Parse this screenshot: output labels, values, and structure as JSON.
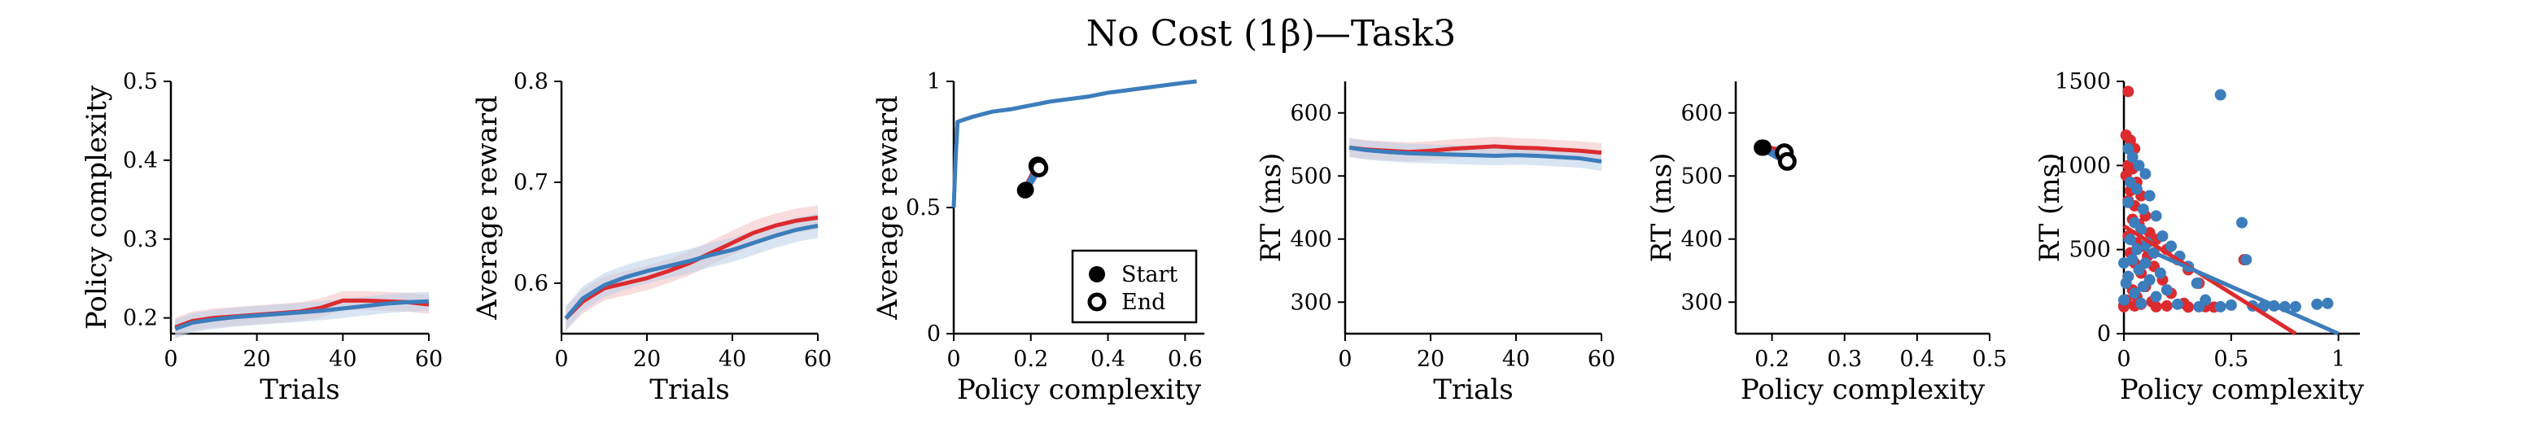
{
  "figure": {
    "title": "No Cost (1β)—Task3"
  },
  "colors": {
    "red": "#dc2b2f",
    "blue": "#3c7dbc",
    "red_band": "#f3bfc3",
    "blue_band": "#b9cfe8",
    "axis": "#000000"
  },
  "chart_data": [
    {
      "type": "line",
      "xlabel": "Trials",
      "ylabel": "Policy complexity",
      "xlim": [
        0,
        60
      ],
      "ylim": [
        0.18,
        0.5
      ],
      "xticks": [
        0,
        20,
        40,
        60
      ],
      "yticks": [
        0.2,
        0.3,
        0.4,
        0.5
      ],
      "xtick_labels": [
        "0",
        "20",
        "40",
        "60"
      ],
      "ytick_labels": [
        "0.2",
        "0.3",
        "0.4",
        "0.5"
      ],
      "series": [
        {
          "color": "red",
          "band": 0.012,
          "x": [
            1,
            5,
            10,
            15,
            20,
            25,
            30,
            35,
            40,
            45,
            50,
            55,
            60
          ],
          "y": [
            0.188,
            0.196,
            0.2,
            0.202,
            0.204,
            0.206,
            0.208,
            0.213,
            0.222,
            0.222,
            0.221,
            0.22,
            0.217
          ]
        },
        {
          "color": "blue",
          "band": 0.012,
          "x": [
            1,
            5,
            10,
            15,
            20,
            25,
            30,
            35,
            40,
            45,
            50,
            55,
            60
          ],
          "y": [
            0.186,
            0.194,
            0.198,
            0.201,
            0.203,
            0.205,
            0.207,
            0.209,
            0.212,
            0.215,
            0.218,
            0.22,
            0.221
          ]
        }
      ]
    },
    {
      "type": "line",
      "xlabel": "Trials",
      "ylabel": "Average reward",
      "xlim": [
        0,
        60
      ],
      "ylim": [
        0.55,
        0.8
      ],
      "xticks": [
        0,
        20,
        40,
        60
      ],
      "yticks": [
        0.6,
        0.7,
        0.8
      ],
      "xtick_labels": [
        "0",
        "20",
        "40",
        "60"
      ],
      "ytick_labels": [
        "0.6",
        "0.7",
        "0.8"
      ],
      "series": [
        {
          "color": "red",
          "band": 0.012,
          "x": [
            1,
            5,
            10,
            15,
            20,
            25,
            30,
            35,
            40,
            45,
            50,
            55,
            60
          ],
          "y": [
            0.565,
            0.582,
            0.595,
            0.6,
            0.605,
            0.612,
            0.62,
            0.63,
            0.64,
            0.65,
            0.657,
            0.662,
            0.665
          ]
        },
        {
          "color": "blue",
          "band": 0.012,
          "x": [
            1,
            5,
            10,
            15,
            20,
            25,
            30,
            35,
            40,
            45,
            50,
            55,
            60
          ],
          "y": [
            0.565,
            0.585,
            0.598,
            0.606,
            0.612,
            0.617,
            0.622,
            0.628,
            0.633,
            0.64,
            0.647,
            0.653,
            0.657
          ]
        }
      ]
    },
    {
      "type": "line",
      "xlabel": "Policy complexity",
      "ylabel": "Average reward",
      "xlim": [
        0,
        0.65
      ],
      "ylim": [
        0,
        1
      ],
      "xticks": [
        0,
        0.2,
        0.4,
        0.6
      ],
      "yticks": [
        0,
        0.5,
        1
      ],
      "xtick_labels": [
        "0",
        "0.2",
        "0.4",
        "0.6"
      ],
      "ytick_labels": [
        "0",
        "0.5",
        "1"
      ],
      "series": [
        {
          "color": "blue",
          "x": [
            0,
            0.005,
            0.01,
            0.05,
            0.1,
            0.15,
            0.2,
            0.25,
            0.3,
            0.35,
            0.4,
            0.45,
            0.5,
            0.55,
            0.6,
            0.63
          ],
          "y": [
            0.5,
            0.7,
            0.84,
            0.86,
            0.88,
            0.89,
            0.905,
            0.92,
            0.93,
            0.94,
            0.955,
            0.965,
            0.975,
            0.985,
            0.995,
            1.0
          ]
        }
      ],
      "markers": [
        {
          "kind": "start",
          "color": "red",
          "x": 0.187,
          "y": 0.57
        },
        {
          "kind": "start",
          "color": "blue",
          "x": 0.185,
          "y": 0.568
        },
        {
          "kind": "end",
          "color": "red",
          "x": 0.218,
          "y": 0.665
        },
        {
          "kind": "end",
          "color": "blue",
          "x": 0.221,
          "y": 0.657
        }
      ],
      "legend": {
        "position": "bottom-right",
        "start_label": "Start",
        "end_label": "End"
      }
    },
    {
      "type": "line",
      "xlabel": "Trials",
      "ylabel": "RT (ms)",
      "xlim": [
        0,
        60
      ],
      "ylim": [
        250,
        650
      ],
      "xticks": [
        0,
        20,
        40,
        60
      ],
      "yticks": [
        300,
        400,
        500,
        600
      ],
      "xtick_labels": [
        "0",
        "20",
        "40",
        "60"
      ],
      "ytick_labels": [
        "300",
        "400",
        "500",
        "600"
      ],
      "series": [
        {
          "color": "red",
          "band": 15,
          "x": [
            1,
            5,
            10,
            15,
            20,
            25,
            30,
            35,
            40,
            45,
            50,
            55,
            60
          ],
          "y": [
            545,
            542,
            540,
            538,
            540,
            543,
            545,
            547,
            545,
            544,
            542,
            540,
            537
          ]
        },
        {
          "color": "blue",
          "band": 15,
          "x": [
            1,
            5,
            10,
            15,
            20,
            25,
            30,
            35,
            40,
            45,
            50,
            55,
            60
          ],
          "y": [
            545,
            541,
            538,
            536,
            535,
            534,
            533,
            532,
            533,
            532,
            530,
            528,
            523
          ]
        }
      ]
    },
    {
      "type": "scatter",
      "xlabel": "Policy complexity",
      "ylabel": "RT (ms)",
      "xlim": [
        0.15,
        0.5
      ],
      "ylim": [
        250,
        650
      ],
      "xticks": [
        0.2,
        0.3,
        0.4,
        0.5
      ],
      "yticks": [
        300,
        400,
        500,
        600
      ],
      "xtick_labels": [
        "0.2",
        "0.3",
        "0.4",
        "0.5"
      ],
      "ytick_labels": [
        "300",
        "400",
        "500",
        "600"
      ],
      "markers": [
        {
          "kind": "start",
          "color": "red",
          "x": 0.188,
          "y": 545
        },
        {
          "kind": "start",
          "color": "blue",
          "x": 0.186,
          "y": 545
        },
        {
          "kind": "end",
          "color": "red",
          "x": 0.217,
          "y": 537
        },
        {
          "kind": "end",
          "color": "blue",
          "x": 0.221,
          "y": 523
        }
      ]
    },
    {
      "type": "scatter",
      "xlabel": "Policy complexity",
      "ylabel": "RT (ms)",
      "xlim": [
        0,
        1.1
      ],
      "ylim": [
        0,
        1500
      ],
      "xticks": [
        0,
        0.5,
        1
      ],
      "yticks": [
        0,
        500,
        1000,
        1500
      ],
      "xtick_labels": [
        "0",
        "0.5",
        "1"
      ],
      "ytick_labels": [
        "0",
        "500",
        "1000",
        "1500"
      ],
      "series": [
        {
          "color": "red",
          "points": [
            [
              0.02,
              1440
            ],
            [
              0.01,
              1180
            ],
            [
              0.03,
              1150
            ],
            [
              0.05,
              1100
            ],
            [
              0.02,
              1000
            ],
            [
              0.04,
              980
            ],
            [
              0.01,
              940
            ],
            [
              0.06,
              900
            ],
            [
              0.03,
              850
            ],
            [
              0.08,
              820
            ],
            [
              0.02,
              790
            ],
            [
              0.05,
              760
            ],
            [
              0.1,
              700
            ],
            [
              0.04,
              680
            ],
            [
              0.07,
              650
            ],
            [
              0.12,
              600
            ],
            [
              0.02,
              580
            ],
            [
              0.15,
              560
            ],
            [
              0.06,
              540
            ],
            [
              0.09,
              520
            ],
            [
              0.2,
              500
            ],
            [
              0.03,
              480
            ],
            [
              0.11,
              460
            ],
            [
              0.25,
              440
            ],
            [
              0.05,
              420
            ],
            [
              0.14,
              400
            ],
            [
              0.3,
              380
            ],
            [
              0.08,
              360
            ],
            [
              0.02,
              340
            ],
            [
              0.18,
              320
            ],
            [
              0.35,
              300
            ],
            [
              0.1,
              280
            ],
            [
              0.04,
              260
            ],
            [
              0.22,
              240
            ],
            [
              0.06,
              220
            ],
            [
              0.01,
              200
            ],
            [
              0.13,
              190
            ],
            [
              0.28,
              180
            ],
            [
              0.0,
              170
            ],
            [
              0.05,
              165
            ],
            [
              0.15,
              160
            ],
            [
              0.3,
              158
            ],
            [
              0.42,
              158
            ],
            [
              0.56,
              440
            ],
            [
              0.0,
              160
            ],
            [
              0.08,
              175
            ],
            [
              0.2,
              165
            ],
            [
              0.38,
              160
            ]
          ]
        },
        {
          "color": "blue",
          "points": [
            [
              0.45,
              1420
            ],
            [
              0.02,
              1100
            ],
            [
              0.04,
              1050
            ],
            [
              0.07,
              1000
            ],
            [
              0.1,
              950
            ],
            [
              0.03,
              900
            ],
            [
              0.06,
              860
            ],
            [
              0.12,
              820
            ],
            [
              0.02,
              780
            ],
            [
              0.09,
              740
            ],
            [
              0.15,
              700
            ],
            [
              0.05,
              660
            ],
            [
              0.08,
              620
            ],
            [
              0.18,
              580
            ],
            [
              0.03,
              560
            ],
            [
              0.11,
              540
            ],
            [
              0.22,
              520
            ],
            [
              0.06,
              500
            ],
            [
              0.14,
              480
            ],
            [
              0.26,
              460
            ],
            [
              0.04,
              440
            ],
            [
              0.1,
              420
            ],
            [
              0.3,
              400
            ],
            [
              0.07,
              380
            ],
            [
              0.17,
              360
            ],
            [
              0.02,
              340
            ],
            [
              0.12,
              320
            ],
            [
              0.34,
              300
            ],
            [
              0.09,
              280
            ],
            [
              0.2,
              260
            ],
            [
              0.05,
              240
            ],
            [
              0.15,
              220
            ],
            [
              0.38,
              200
            ],
            [
              0.08,
              180
            ],
            [
              0.25,
              175
            ],
            [
              0.5,
              170
            ],
            [
              0.6,
              165
            ],
            [
              0.7,
              165
            ],
            [
              0.8,
              160
            ],
            [
              0.9,
              175
            ],
            [
              0.95,
              180
            ],
            [
              0.55,
              660
            ],
            [
              0.57,
              440
            ],
            [
              0.65,
              160
            ],
            [
              0.45,
              160
            ],
            [
              0.35,
              160
            ],
            [
              0.75,
              160
            ],
            [
              0.0,
              200
            ],
            [
              0.01,
              300
            ],
            [
              0.0,
              420
            ]
          ]
        }
      ],
      "fit_lines": [
        {
          "color": "red",
          "x": [
            0,
            0.8
          ],
          "y": [
            640,
            0
          ]
        },
        {
          "color": "blue",
          "x": [
            0,
            1.0
          ],
          "y": [
            560,
            0
          ]
        }
      ]
    }
  ]
}
